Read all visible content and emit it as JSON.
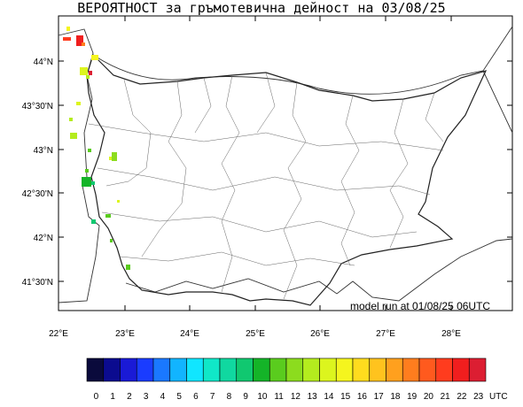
{
  "title": "ВЕРОЯТНОСТ за гръмотевична дейност на 03/08/25",
  "model_run": "model run at 01/08/25 06UTC",
  "axes": {
    "lat_labels": [
      "44°N",
      "43°30'N",
      "43°N",
      "42°30'N",
      "42°N",
      "41°30'N"
    ],
    "lon_labels": [
      "22°E",
      "23°E",
      "24°E",
      "25°E",
      "26°E",
      "27°E",
      "28°E"
    ]
  },
  "colorbar": {
    "labels": [
      "0",
      "1",
      "2",
      "3",
      "4",
      "5",
      "6",
      "7",
      "8",
      "9",
      "10",
      "11",
      "12",
      "13",
      "14",
      "15",
      "16",
      "17",
      "18",
      "19",
      "20",
      "21",
      "22",
      "23"
    ],
    "unit": "UTC",
    "colors": [
      "#0a0a3c",
      "#0b0b8f",
      "#1a1ad6",
      "#1a3cff",
      "#1a78ff",
      "#12b4ff",
      "#10e6ff",
      "#10e8c8",
      "#10d8a0",
      "#10c870",
      "#14b428",
      "#5acc1e",
      "#8cdc1e",
      "#b4ec1e",
      "#dcf51e",
      "#f5f51e",
      "#ffdc1e",
      "#ffc31e",
      "#ffa01e",
      "#ff7d1e",
      "#ff5a1e",
      "#ff3c1e",
      "#f01e1e",
      "#dc1e32"
    ]
  }
}
